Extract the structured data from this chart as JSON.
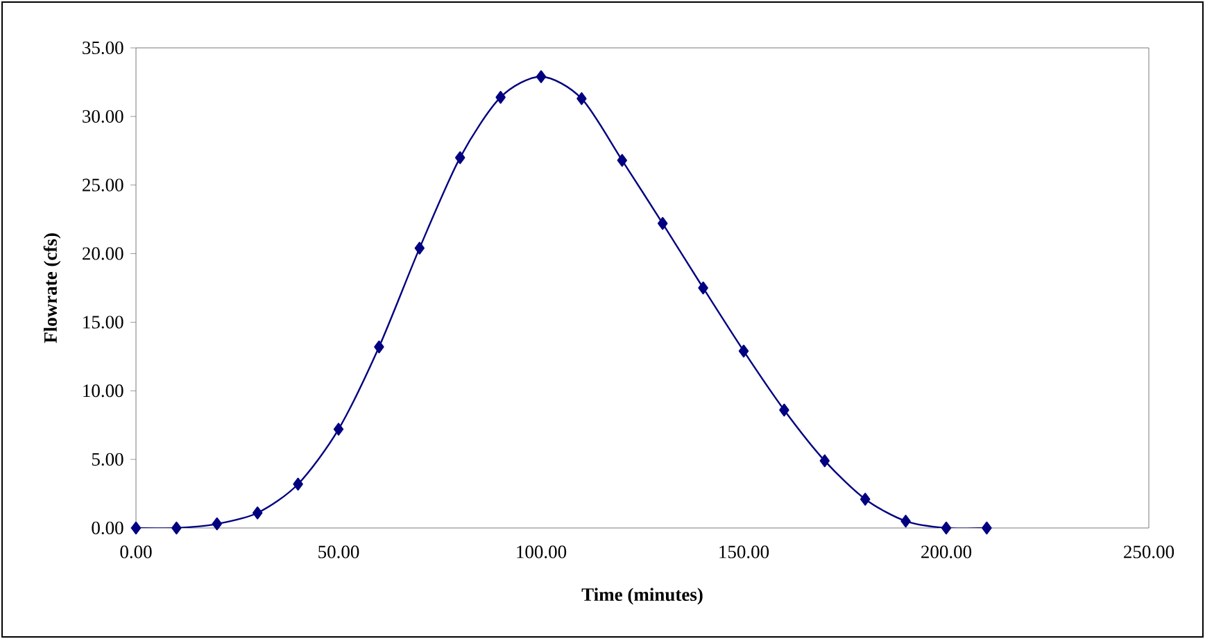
{
  "chart_data": {
    "type": "line",
    "xlabel": "Time (minutes)",
    "ylabel": "Flowrate (cfs)",
    "x": [
      0,
      10,
      20,
      30,
      40,
      50,
      60,
      70,
      80,
      90,
      100,
      110,
      120,
      130,
      140,
      150,
      160,
      170,
      180,
      190,
      200,
      210
    ],
    "series": [
      {
        "color": "#000080",
        "values": [
          0,
          0,
          0.3,
          1.1,
          3.2,
          7.2,
          13.2,
          20.4,
          27.0,
          31.4,
          32.9,
          31.3,
          26.8,
          22.2,
          17.5,
          12.9,
          8.6,
          4.9,
          2.1,
          0.5,
          0,
          0
        ]
      }
    ],
    "xlim": [
      0,
      250
    ],
    "ylim": [
      0,
      35
    ],
    "xticks": [
      {
        "value": 0,
        "label": "0.00"
      },
      {
        "value": 50,
        "label": "50.00"
      },
      {
        "value": 100,
        "label": "100.00"
      },
      {
        "value": 150,
        "label": "150.00"
      },
      {
        "value": 200,
        "label": "200.00"
      },
      {
        "value": 250,
        "label": "250.00"
      }
    ],
    "yticks": [
      {
        "value": 0,
        "label": "0.00"
      },
      {
        "value": 5,
        "label": "5.00"
      },
      {
        "value": 10,
        "label": "10.00"
      },
      {
        "value": 15,
        "label": "15.00"
      },
      {
        "value": 20,
        "label": "20.00"
      },
      {
        "value": 25,
        "label": "25.00"
      },
      {
        "value": 30,
        "label": "30.00"
      },
      {
        "value": 35,
        "label": "35.00"
      }
    ],
    "marker": "diamond",
    "line_style": "solid"
  }
}
